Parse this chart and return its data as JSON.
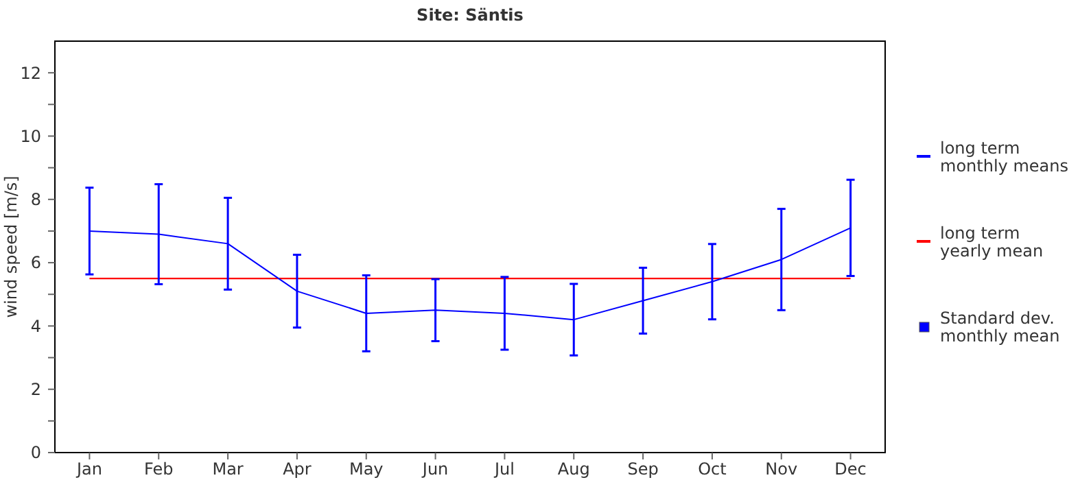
{
  "chart_data": {
    "type": "line",
    "title": "Site: Säntis",
    "ylabel": "wind speed [m/s]",
    "categories": [
      "Jan",
      "Feb",
      "Mar",
      "Apr",
      "May",
      "Jun",
      "Jul",
      "Aug",
      "Sep",
      "Oct",
      "Nov",
      "Dec"
    ],
    "series": [
      {
        "name": "long term monthly means",
        "color": "#0000ff",
        "values": [
          7.0,
          6.9,
          6.6,
          5.1,
          4.4,
          4.5,
          4.4,
          4.2,
          4.8,
          5.4,
          6.1,
          7.1
        ],
        "errors": [
          1.37,
          1.58,
          1.45,
          1.15,
          1.2,
          0.98,
          1.15,
          1.13,
          1.04,
          1.19,
          1.6,
          1.52
        ]
      }
    ],
    "ref_lines": [
      {
        "axis": "y",
        "value": 5.5,
        "label": "long term yearly mean",
        "color": "#ff0000"
      }
    ],
    "annotations": [
      "Standard dev. monthly mean"
    ],
    "ylim": [
      0,
      13
    ],
    "yticks": [
      0,
      {
        "value": 1,
        "label": null
      },
      2,
      {
        "value": 3,
        "label": null
      },
      4,
      {
        "value": 5,
        "label": null
      },
      6,
      {
        "value": 7,
        "label": null
      },
      8,
      {
        "value": 9,
        "label": null
      },
      10,
      {
        "value": 11,
        "label": null
      },
      12
    ],
    "grid": false,
    "legend": "right",
    "marker": "none",
    "line_style": "solid"
  }
}
